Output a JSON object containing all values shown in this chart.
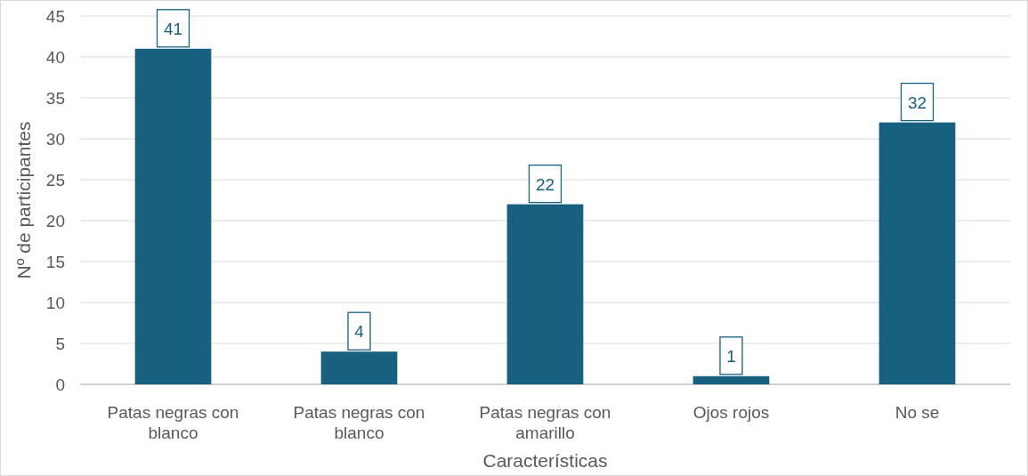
{
  "chart_data": {
    "type": "bar",
    "xlabel": "Características",
    "ylabel": "Nº de participantes",
    "categories": [
      "Patas negras con blanco",
      "Patas negras con blanco",
      "Patas negras con amarillo",
      "Ojos rojos",
      "No se"
    ],
    "values": [
      41,
      4,
      22,
      1,
      32
    ],
    "color": "#17607f",
    "ylim": [
      0,
      45
    ],
    "yticks": [
      0,
      5,
      10,
      15,
      20,
      25,
      30,
      35,
      40,
      45
    ],
    "grid": "y",
    "data_labels": true
  }
}
